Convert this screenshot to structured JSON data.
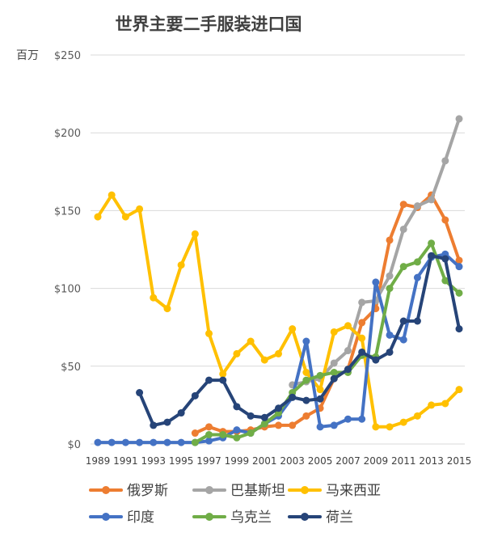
{
  "chart_data": {
    "type": "line",
    "title": "世界主要二手服装进口国",
    "unit": "百万",
    "xlabel": "",
    "ylabel": "",
    "ylim": [
      0,
      250
    ],
    "yticks": [
      {
        "value": 0,
        "label": "$0"
      },
      {
        "value": 50,
        "label": "$50"
      },
      {
        "value": 100,
        "label": "$100"
      },
      {
        "value": 150,
        "label": "$150"
      },
      {
        "value": 200,
        "label": "$200"
      },
      {
        "value": 250,
        "label": "$250"
      }
    ],
    "x": [
      1989,
      1990,
      1991,
      1992,
      1993,
      1994,
      1995,
      1996,
      1997,
      1998,
      1999,
      2000,
      2001,
      2002,
      2003,
      2004,
      2005,
      2006,
      2007,
      2008,
      2009,
      2010,
      2011,
      2012,
      2013,
      2014,
      2015
    ],
    "xtick_labels": [
      "1989",
      "1991",
      "1993",
      "1995",
      "1997",
      "1999",
      "2001",
      "2003",
      "2005",
      "2007",
      "2009",
      "2011",
      "2013",
      "2015"
    ],
    "grid": true,
    "legend_position": "bottom",
    "series": [
      {
        "name": "俄罗斯",
        "color": "#ED7D31",
        "values": [
          null,
          null,
          null,
          null,
          null,
          null,
          null,
          7,
          11,
          8,
          8,
          9,
          11,
          12,
          12,
          18,
          23,
          42,
          48,
          78,
          87,
          131,
          154,
          152,
          160,
          144,
          118
        ]
      },
      {
        "name": "巴基斯坦",
        "color": "#A5A5A5",
        "values": [
          null,
          null,
          null,
          null,
          null,
          null,
          null,
          null,
          null,
          null,
          null,
          null,
          null,
          null,
          38,
          40,
          42,
          52,
          60,
          91,
          92,
          108,
          138,
          153,
          157,
          182,
          209
        ]
      },
      {
        "name": "马来西亚",
        "color": "#FFC000",
        "values": [
          146,
          160,
          146,
          151,
          94,
          87,
          115,
          135,
          71,
          45,
          58,
          66,
          54,
          58,
          74,
          46,
          35,
          72,
          76,
          68,
          11,
          11,
          14,
          18,
          25,
          26,
          35
        ]
      },
      {
        "name": "印度",
        "color": "#4472C4",
        "values": [
          1,
          1,
          1,
          1,
          1,
          1,
          1,
          1,
          2,
          4,
          9,
          7,
          13,
          18,
          30,
          66,
          11,
          12,
          16,
          16,
          104,
          70,
          67,
          107,
          120,
          122,
          114
        ]
      },
      {
        "name": "乌克兰",
        "color": "#70AD47",
        "values": [
          null,
          null,
          null,
          null,
          null,
          null,
          null,
          1,
          6,
          6,
          4,
          7,
          13,
          20,
          33,
          41,
          44,
          46,
          46,
          57,
          56,
          100,
          114,
          117,
          129,
          105,
          97
        ]
      },
      {
        "name": "荷兰",
        "color": "#264478",
        "values": [
          null,
          null,
          null,
          33,
          12,
          14,
          20,
          31,
          41,
          41,
          24,
          18,
          17,
          23,
          30,
          28,
          29,
          42,
          48,
          59,
          54,
          59,
          79,
          79,
          121,
          119,
          74
        ]
      }
    ]
  }
}
